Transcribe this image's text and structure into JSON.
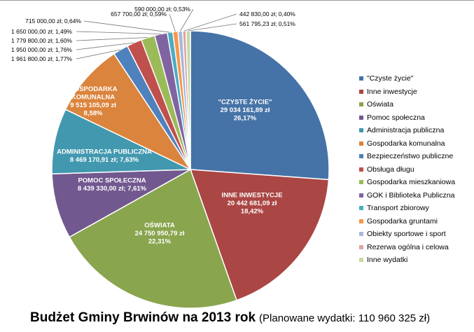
{
  "chart_data": {
    "type": "pie",
    "title": "Budżet Gminy Brwinów na 2013 rok",
    "subtitle": "(Planowane wydatki: 110 960 325 zł)",
    "legend_position": "right",
    "slices": [
      {
        "name": "\"Czyste życie\"",
        "value": 29034161.89,
        "percent": 26.17,
        "color": "#4573A7",
        "label": [
          "\"CZYSTE ŻYCIE\"",
          "29 034 161,89 zł",
          "26,17%"
        ],
        "label_inside": true
      },
      {
        "name": "Inne inwestycje",
        "value": 20442681.09,
        "percent": 18.42,
        "color": "#AA4644",
        "label": [
          "INNE INWESTYCJE",
          "20 442 681,09 zł",
          "18,42%"
        ],
        "label_inside": true
      },
      {
        "name": "Oświata",
        "value": 24750950.79,
        "percent": 22.31,
        "color": "#89A54E",
        "label": [
          "OŚWIATA",
          "24 750 950,79 zł",
          "22,31%"
        ],
        "label_inside": true
      },
      {
        "name": "Pomoc społeczna",
        "value": 8439330.0,
        "percent": 7.61,
        "color": "#71588F",
        "label": [
          "POMOC SPOŁECZNA",
          "8 439 330,00 zł; 7,61%"
        ],
        "label_inside": true
      },
      {
        "name": "Administracja publiczna",
        "value": 8469170.91,
        "percent": 7.63,
        "color": "#4298AF",
        "label": [
          "ADMINISTRACJA PUBLICZNA",
          "8 469 170,91 zł; 7,63%"
        ],
        "label_inside": true
      },
      {
        "name": "Gospodarka komunalna",
        "value": 9515105.09,
        "percent": 8.58,
        "color": "#DB843D",
        "label": [
          "GOSPODARKA",
          "KOMUNALNA",
          "9 515 105,09 zł",
          "8,58%"
        ],
        "label_inside": true
      },
      {
        "name": "Bezpieczeństwo publiczne",
        "value": 1961800.0,
        "percent": 1.77,
        "color": "#4F81BD",
        "label": [
          "1 961 800,00 zł; 1,77%"
        ],
        "label_inside": false
      },
      {
        "name": "Obsługa długu",
        "value": 1950000.0,
        "percent": 1.76,
        "color": "#C0504D",
        "label": [
          "1 950 000,00 zł; 1,76%"
        ],
        "label_inside": false
      },
      {
        "name": "Gospodarka mieszkaniowa",
        "value": 1779800.0,
        "percent": 1.6,
        "color": "#9BBB59",
        "label": [
          "1 779 800,00 zł; 1,60%"
        ],
        "label_inside": false
      },
      {
        "name": "GOK i Biblioteka Publiczna",
        "value": 1650000.0,
        "percent": 1.49,
        "color": "#8064A2",
        "label": [
          "1 650 000,00 zł; 1,49%"
        ],
        "label_inside": false
      },
      {
        "name": "Transport zbiorowy",
        "value": 715000.0,
        "percent": 0.64,
        "color": "#4BACC6",
        "label": [
          "715 000,00 zł; 0,64%"
        ],
        "label_inside": false
      },
      {
        "name": "Gospodarka gruntami",
        "value": 657700.0,
        "percent": 0.59,
        "color": "#F79646",
        "label": [
          "657 700,00 zł; 0,59%"
        ],
        "label_inside": false
      },
      {
        "name": "Obiekty sportowe i sport",
        "value": 590000.0,
        "percent": 0.53,
        "color": "#A5B9DC",
        "label": [
          "590 000,00 zł; 0,53%"
        ],
        "label_inside": false
      },
      {
        "name": "Rezerwa ogólna i celowa",
        "value": 442830.0,
        "percent": 0.4,
        "color": "#DDA5A4",
        "label": [
          "442 830,00 zł; 0,40%"
        ],
        "label_inside": false
      },
      {
        "name": "Inne wydatki",
        "value": 561795.23,
        "percent": 0.51,
        "color": "#C7D9A5",
        "label": [
          "561 795,23 zł; 0,51%"
        ],
        "label_inside": false
      }
    ]
  }
}
